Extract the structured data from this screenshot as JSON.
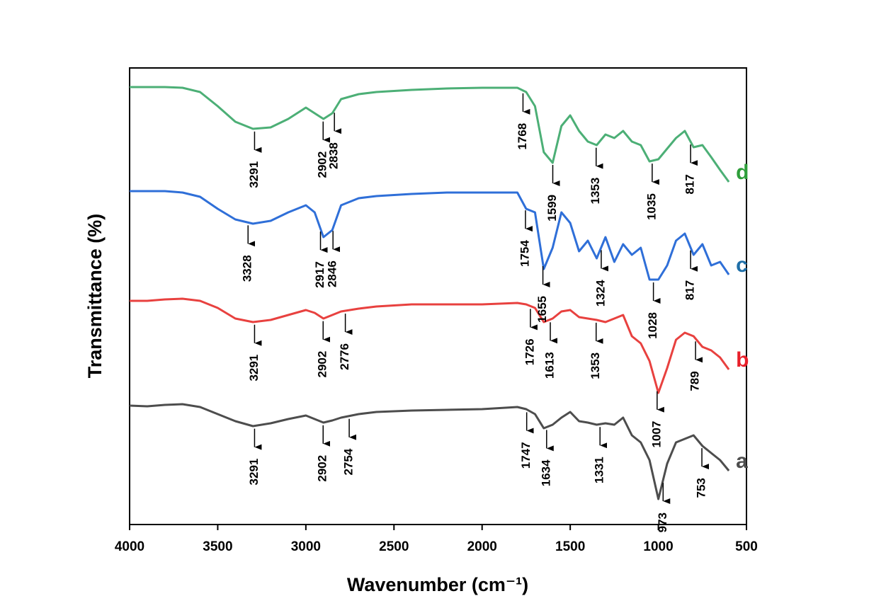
{
  "chart_data": {
    "type": "line",
    "xlabel": "Wavenumber (cm⁻¹)",
    "ylabel": "Transmittance (%)",
    "xlim": [
      4000,
      500
    ],
    "xticks": [
      4000,
      3500,
      3000,
      2500,
      2000,
      1500,
      1000,
      500
    ],
    "ylim": [
      0,
      645
    ],
    "x": [
      4000,
      3900,
      3800,
      3700,
      3600,
      3500,
      3400,
      3300,
      3200,
      3100,
      3000,
      2950,
      2900,
      2850,
      2800,
      2700,
      2600,
      2400,
      2200,
      2000,
      1800,
      1750,
      1700,
      1650,
      1600,
      1550,
      1500,
      1450,
      1400,
      1350,
      1300,
      1250,
      1200,
      1150,
      1100,
      1050,
      1000,
      950,
      900,
      850,
      800,
      750,
      700,
      650,
      600
    ],
    "series": [
      {
        "name": "a",
        "color": "#4d4d4d",
        "label_color": "#4d4d4d",
        "values": [
          168,
          167,
          169,
          170,
          166,
          156,
          146,
          139,
          143,
          149,
          154,
          149,
          144,
          147,
          151,
          156,
          159,
          161,
          162,
          163,
          166,
          163,
          156,
          136,
          141,
          151,
          159,
          146,
          144,
          141,
          143,
          141,
          151,
          126,
          116,
          91,
          36,
          86,
          116,
          121,
          126,
          111,
          101,
          91,
          76
        ],
        "annotations": [
          3291,
          2902,
          2754,
          1747,
          1634,
          1331,
          973,
          753
        ]
      },
      {
        "name": "b",
        "color": "#e8413f",
        "label_color": "#e8202a",
        "values": [
          316,
          316,
          318,
          319,
          316,
          306,
          291,
          286,
          289,
          296,
          303,
          299,
          291,
          296,
          301,
          305,
          308,
          311,
          311,
          311,
          313,
          311,
          306,
          286,
          291,
          301,
          303,
          293,
          291,
          289,
          286,
          291,
          296,
          266,
          256,
          231,
          186,
          221,
          261,
          271,
          266,
          251,
          246,
          236,
          219
        ],
        "annotations": [
          3291,
          2902,
          2776,
          1726,
          1613,
          1353,
          1007,
          789
        ]
      },
      {
        "name": "c",
        "color": "#2f6fd8",
        "label_color": "#1f6fa8",
        "values": [
          471,
          471,
          471,
          469,
          463,
          446,
          431,
          425,
          429,
          441,
          451,
          441,
          406,
          416,
          451,
          461,
          464,
          467,
          469,
          469,
          469,
          446,
          441,
          361,
          391,
          441,
          426,
          386,
          401,
          376,
          406,
          371,
          396,
          381,
          391,
          346,
          346,
          366,
          401,
          411,
          381,
          396,
          366,
          371,
          353
        ],
        "annotations": [
          3328,
          2917,
          2846,
          1754,
          1655,
          1324,
          1028,
          817
        ]
      },
      {
        "name": "d",
        "color": "#4caf76",
        "label_color": "#2e9e3a",
        "values": [
          618,
          618,
          618,
          617,
          611,
          591,
          569,
          559,
          561,
          573,
          589,
          581,
          573,
          581,
          601,
          608,
          611,
          614,
          616,
          617,
          617,
          611,
          591,
          526,
          511,
          563,
          578,
          556,
          541,
          536,
          551,
          546,
          556,
          541,
          536,
          513,
          516,
          531,
          546,
          556,
          533,
          536,
          519,
          501,
          484
        ],
        "annotations": [
          3291,
          2902,
          2838,
          1768,
          1599,
          1353,
          1035,
          817
        ]
      }
    ]
  }
}
